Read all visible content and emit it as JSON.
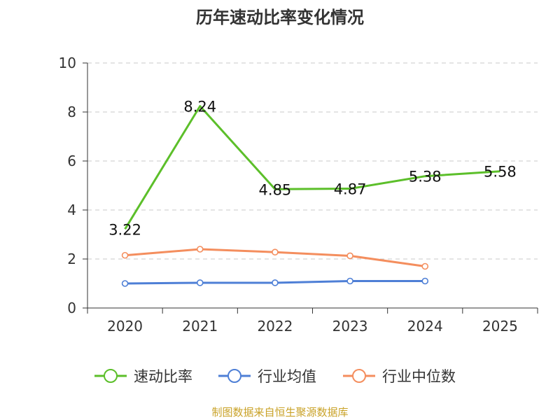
{
  "chart_data": {
    "type": "line",
    "title": "历年速动比率变化情况",
    "categories": [
      "2020",
      "2021",
      "2022",
      "2023",
      "2024",
      "2025"
    ],
    "ylim": [
      0,
      10
    ],
    "yticks": [
      "0",
      "2",
      "4",
      "6",
      "8",
      "10"
    ],
    "grid": true,
    "legend_position": "bottom",
    "series": [
      {
        "name": "速动比率",
        "color": "#5cbf2a",
        "values": [
          3.22,
          8.24,
          4.85,
          4.87,
          5.38,
          5.58
        ],
        "labels": [
          "3.22",
          "8.24",
          "4.85",
          "4.87",
          "5.38",
          "5.58"
        ],
        "show_markers": false
      },
      {
        "name": "行业均值",
        "color": "#4e7fd6",
        "values": [
          1.0,
          1.03,
          1.03,
          1.1,
          1.1,
          null
        ],
        "show_markers": true
      },
      {
        "name": "行业中位数",
        "color": "#f48e5e",
        "values": [
          2.15,
          2.4,
          2.28,
          2.13,
          1.7,
          null
        ],
        "show_markers": true
      }
    ],
    "source": "制图数据来自恒生聚源数据库",
    "source_color": "#c9a227"
  }
}
